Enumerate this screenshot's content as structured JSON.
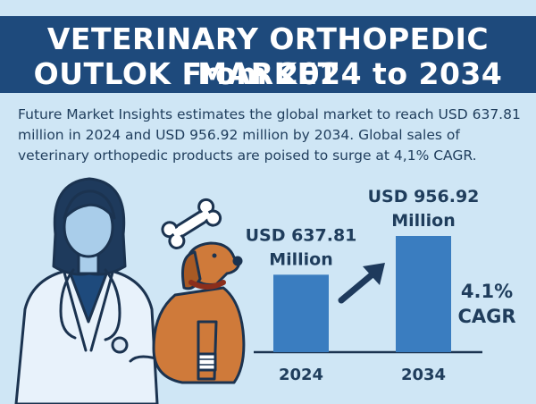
{
  "header": {
    "title_line1": "VETERINARY ORTHOPEDIC MARKET",
    "title_line2": "OUTLOK From 2024 to 2034"
  },
  "intro": {
    "text": "Future Market Insights estimates the global market to reach USD 637.81 million in 2024 and USD 956.92 million by 2034. Global sales of veterinary orthopedic products are poised to surge at 4,1% CAGR."
  },
  "colors": {
    "banner": "#1e4a7c",
    "background": "#cfe6f5",
    "bar": "#3a7dc0",
    "text": "#1f3d5c"
  },
  "icons": [
    "veterinarian-icon",
    "stethoscope-icon",
    "dog-icon",
    "bone-icon",
    "growth-arrow-icon"
  ],
  "chart_data": {
    "type": "bar",
    "categories": [
      "2024",
      "2034"
    ],
    "values": [
      637.81,
      956.92
    ],
    "value_labels": [
      [
        "USD 637.81",
        "Million"
      ],
      [
        "USD 956.92",
        "Million"
      ]
    ],
    "annotation": [
      "4.1%",
      "CAGR"
    ],
    "ylim": [
      0,
      1200
    ],
    "grid": false
  }
}
